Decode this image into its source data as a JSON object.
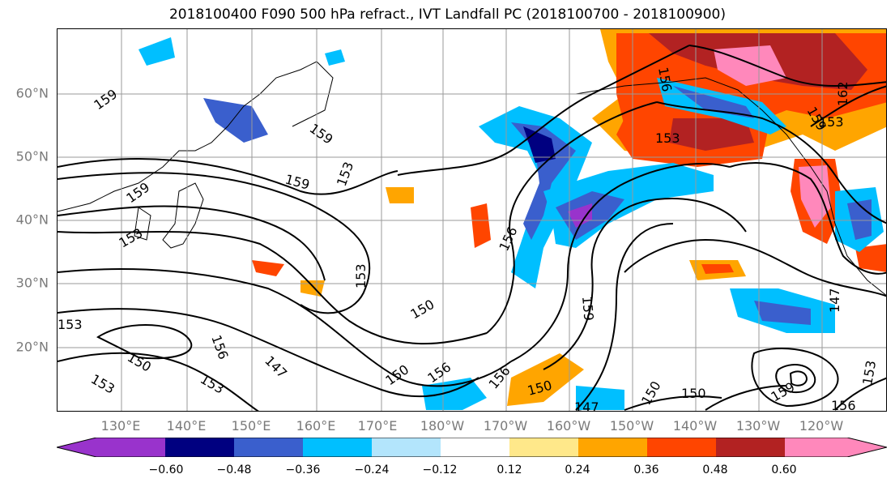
{
  "title": "2018100400 F090 500 hPa refract., IVT Landfall PC (2018100700 - 2018100900)",
  "lon_labels": [
    "130°E",
    "140°E",
    "150°E",
    "160°E",
    "170°E",
    "180°W",
    "170°W",
    "160°W",
    "150°W",
    "140°W",
    "130°W",
    "120°W"
  ],
  "lat_labels": [
    "60°N",
    "50°N",
    "40°N",
    "30°N",
    "20°N"
  ],
  "contour_labels": [
    "159",
    "159",
    "153",
    "159",
    "153",
    "159",
    "153",
    "153",
    "150",
    "147",
    "156",
    "150",
    "156",
    "153",
    "153",
    "150",
    "150",
    "156",
    "159",
    "156",
    "150",
    "147",
    "150",
    "153",
    "159",
    "156",
    "153",
    "156",
    "153",
    "162",
    "159",
    "147"
  ],
  "colorbar": {
    "tick_labels": [
      "−0.60",
      "−0.48",
      "−0.36",
      "−0.24",
      "−0.12",
      "0.12",
      "0.24",
      "0.36",
      "0.48",
      "0.60"
    ],
    "colors": [
      "#9933cc",
      "#000080",
      "#3a5fcd",
      "#00bfff",
      "#b3e5fc",
      "#ffffff",
      "#ffe88a",
      "#ffa500",
      "#ff4500",
      "#b22222",
      "#ff88bb"
    ]
  }
}
